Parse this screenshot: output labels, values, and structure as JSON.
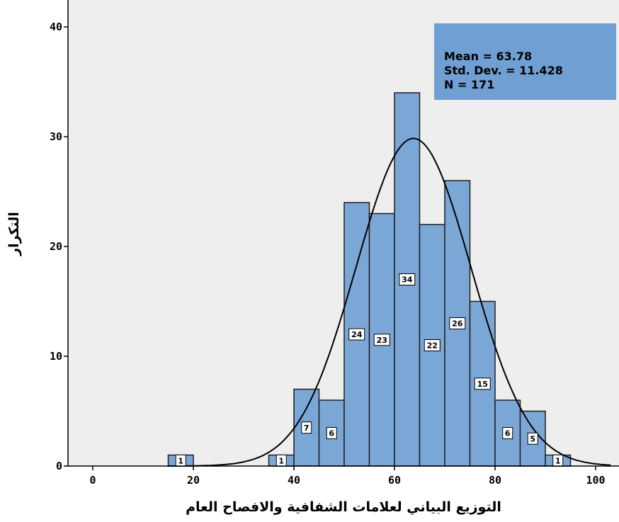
{
  "chart_data": {
    "type": "bar",
    "subtype": "histogram",
    "xlabel": "التوزيع البياني لعلامات الشفافية والافصاح العام",
    "ylabel": "التكرار",
    "xlim": [
      -5,
      103
    ],
    "ylim": [
      0,
      42
    ],
    "xticks": [
      "0",
      "20",
      "40",
      "60",
      "80",
      "100"
    ],
    "yticks": [
      "0",
      "10",
      "20",
      "30",
      "40"
    ],
    "bin_width": 5,
    "bins": [
      {
        "start": 15,
        "end": 20,
        "count": 1,
        "label": "1"
      },
      {
        "start": 35,
        "end": 40,
        "count": 1,
        "label": "1"
      },
      {
        "start": 40,
        "end": 45,
        "count": 7,
        "label": "7"
      },
      {
        "start": 45,
        "end": 50,
        "count": 6,
        "label": "6"
      },
      {
        "start": 50,
        "end": 55,
        "count": 24,
        "label": "24"
      },
      {
        "start": 55,
        "end": 60,
        "count": 23,
        "label": "23"
      },
      {
        "start": 60,
        "end": 65,
        "count": 34,
        "label": "34"
      },
      {
        "start": 65,
        "end": 70,
        "count": 22,
        "label": "22"
      },
      {
        "start": 70,
        "end": 75,
        "count": 26,
        "label": "26"
      },
      {
        "start": 75,
        "end": 80,
        "count": 15,
        "label": "15"
      },
      {
        "start": 80,
        "end": 85,
        "count": 6,
        "label": "6"
      },
      {
        "start": 85,
        "end": 90,
        "count": 5,
        "label": "5"
      },
      {
        "start": 90,
        "end": 95,
        "count": 1,
        "label": "1"
      }
    ],
    "normal_curve": {
      "mean": 63.78,
      "sd": 11.428,
      "n": 171
    },
    "stats_box": {
      "line1": "Mean = 63.78",
      "line2": "Std. Dev. = 11.428",
      "line3": "N = 171",
      "position": "top-right"
    },
    "colors": {
      "bar_fill": "#7ba7d6",
      "bar_stroke": "#1f1f1f",
      "plot_bg": "#eeeeee",
      "stats_box_bg": "#6f9fd3",
      "curve": "#000000"
    },
    "grid": false
  }
}
